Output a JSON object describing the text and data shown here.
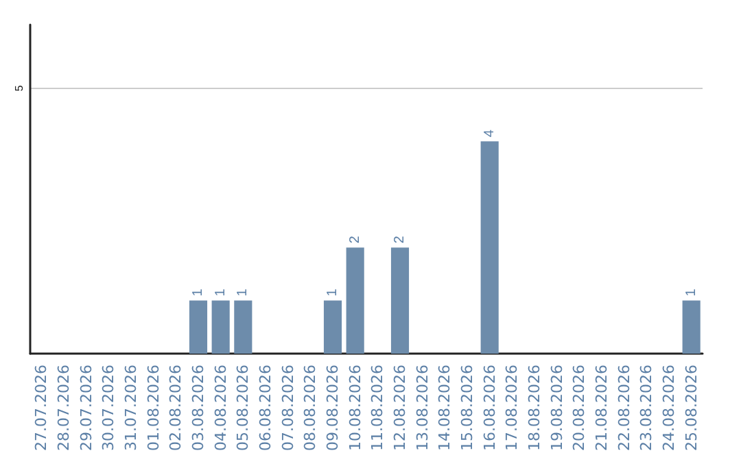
{
  "chart_data": {
    "type": "bar",
    "categories": [
      "27.07.2026",
      "28.07.2026",
      "29.07.2026",
      "30.07.2026",
      "31.07.2026",
      "01.08.2026",
      "02.08.2026",
      "03.08.2026",
      "04.08.2026",
      "05.08.2026",
      "06.08.2026",
      "07.08.2026",
      "08.08.2026",
      "09.08.2026",
      "10.08.2026",
      "11.08.2026",
      "12.08.2026",
      "13.08.2026",
      "14.08.2026",
      "15.08.2026",
      "16.08.2026",
      "17.08.2026",
      "18.08.2026",
      "19.08.2026",
      "20.08.2026",
      "21.08.2026",
      "22.08.2026",
      "23.08.2026",
      "24.08.2026",
      "25.08.2026"
    ],
    "values": [
      0,
      0,
      0,
      0,
      0,
      0,
      0,
      1,
      1,
      1,
      0,
      0,
      0,
      1,
      2,
      0,
      2,
      0,
      0,
      0,
      4,
      0,
      0,
      0,
      0,
      0,
      0,
      0,
      0,
      1
    ],
    "value_labels": [
      null,
      null,
      null,
      null,
      null,
      null,
      null,
      "1",
      "1",
      "1",
      null,
      null,
      null,
      "1",
      "2",
      null,
      "2",
      null,
      null,
      null,
      "4",
      null,
      null,
      null,
      null,
      null,
      null,
      null,
      null,
      "1"
    ],
    "color": "#6d8cab",
    "ylim": [
      0,
      6.2
    ],
    "yticks": [
      5
    ],
    "grid": "y"
  }
}
